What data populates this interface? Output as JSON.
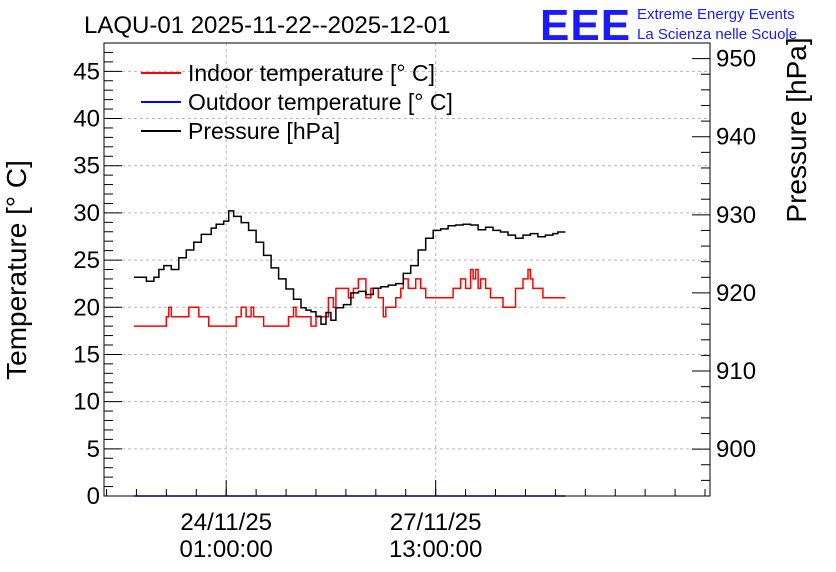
{
  "chart_data": {
    "type": "line",
    "title": "LAQU-01 2025-11-22--2025-12-01",
    "ylabel": "Temperature [° C]",
    "y2label": "Pressure [hPa]",
    "xlabel": "",
    "ylim": [
      0,
      48
    ],
    "y2lim": [
      894,
      952
    ],
    "yticks": [
      "0",
      "5",
      "10",
      "15",
      "20",
      "25",
      "30",
      "35",
      "40",
      "45"
    ],
    "y2ticks": [
      "900",
      "910",
      "920",
      "930",
      "940",
      "950"
    ],
    "xlim": [
      "2025-11-22 00:00",
      "2025-12-02 03:00"
    ],
    "xticks": [
      {
        "at": "2025-11-24 01:00",
        "date": "24/11/25",
        "time": "01:00:00"
      },
      {
        "at": "2025-11-27 13:00",
        "date": "27/11/25",
        "time": "13:00:00"
      }
    ],
    "grid": true,
    "legend": "top-left",
    "series": [
      {
        "name": "Indoor temperature [° C]",
        "color": "#ff0000",
        "axis": "left",
        "x": [
          "2025-11-22 12:00",
          "2025-11-22 23:00",
          "2025-11-23 01:00",
          "2025-11-23 02:00",
          "2025-11-23 03:00",
          "2025-11-23 09:00",
          "2025-11-23 10:00",
          "2025-11-23 12:00",
          "2025-11-23 14:00",
          "2025-11-23 17:00",
          "2025-11-23 18:00",
          "2025-11-24 04:00",
          "2025-11-24 05:00",
          "2025-11-24 07:00",
          "2025-11-24 09:00",
          "2025-11-24 11:00",
          "2025-11-24 12:00",
          "2025-11-24 15:00",
          "2025-11-24 16:00",
          "2025-11-24 21:00",
          "2025-11-25 02:00",
          "2025-11-25 04:00",
          "2025-11-25 05:00",
          "2025-11-25 09:00",
          "2025-11-25 11:00",
          "2025-11-25 13:00",
          "2025-11-25 17:00",
          "2025-11-25 18:00",
          "2025-11-25 20:00",
          "2025-11-25 21:00",
          "2025-11-26 02:00",
          "2025-11-26 04:00",
          "2025-11-26 06:00",
          "2025-11-26 09:00",
          "2025-11-26 11:00",
          "2025-11-26 14:00",
          "2025-11-26 16:00",
          "2025-11-26 17:00",
          "2025-11-26 21:00",
          "2025-11-26 23:00",
          "2025-11-27 00:00",
          "2025-11-27 02:00",
          "2025-11-27 05:00",
          "2025-11-27 07:00",
          "2025-11-27 09:00",
          "2025-11-27 15:00",
          "2025-11-27 20:00",
          "2025-11-27 23:00",
          "2025-11-28 01:00",
          "2025-11-28 03:00",
          "2025-11-28 04:00",
          "2025-11-28 05:00",
          "2025-11-28 06:00",
          "2025-11-28 07:00",
          "2025-11-28 09:00",
          "2025-11-28 11:00",
          "2025-11-28 13:00",
          "2025-11-28 16:00",
          "2025-11-28 19:00",
          "2025-11-28 21:00",
          "2025-11-29 00:00",
          "2025-11-29 02:00",
          "2025-11-29 03:00",
          "2025-11-29 04:00",
          "2025-11-29 06:00",
          "2025-11-29 08:00",
          "2025-11-29 11:00",
          "2025-11-29 14:00",
          "2025-11-29 17:00"
        ],
        "values": [
          18,
          18,
          19,
          20,
          19,
          19,
          20,
          20,
          19,
          19,
          18,
          18,
          19,
          20,
          19,
          20,
          19,
          19,
          18,
          18,
          19,
          20,
          19,
          19,
          18,
          19,
          19,
          21,
          20,
          22,
          21,
          22,
          23,
          21,
          22,
          21,
          19,
          20,
          21,
          22,
          23,
          22,
          23,
          22,
          21,
          21,
          22,
          23,
          22,
          24,
          23,
          24,
          22,
          23,
          22,
          21,
          21,
          20,
          20,
          22,
          23,
          24,
          23,
          22,
          22,
          21,
          21,
          21,
          21
        ]
      },
      {
        "name": "Outdoor temperature [° C]",
        "color": "#0000ff",
        "axis": "left",
        "x": [
          "2025-11-22 12:00",
          "2025-11-29 17:00"
        ],
        "values": [
          0,
          0
        ]
      },
      {
        "name": "Pressure [hPa]",
        "color": "#000000",
        "axis": "right",
        "x": [
          "2025-11-22 12:00",
          "2025-11-22 16:00",
          "2025-11-22 17:00",
          "2025-11-22 20:00",
          "2025-11-22 22:00",
          "2025-11-23 00:00",
          "2025-11-23 03:00",
          "2025-11-23 06:00",
          "2025-11-23 09:00",
          "2025-11-23 12:00",
          "2025-11-23 15:00",
          "2025-11-23 19:00",
          "2025-11-23 21:00",
          "2025-11-24 00:00",
          "2025-11-24 02:00",
          "2025-11-24 04:00",
          "2025-11-24 07:00",
          "2025-11-24 10:00",
          "2025-11-24 13:00",
          "2025-11-24 16:00",
          "2025-11-24 19:00",
          "2025-11-24 22:00",
          "2025-11-25 01:00",
          "2025-11-25 04:00",
          "2025-11-25 07:00",
          "2025-11-25 09:00",
          "2025-11-25 11:00",
          "2025-11-25 13:00",
          "2025-11-25 15:00",
          "2025-11-25 17:00",
          "2025-11-25 19:00",
          "2025-11-25 21:00",
          "2025-11-26 00:00",
          "2025-11-26 03:00",
          "2025-11-26 06:00",
          "2025-11-26 09:00",
          "2025-11-26 12:00",
          "2025-11-26 15:00",
          "2025-11-26 18:00",
          "2025-11-26 21:00",
          "2025-11-27 00:00",
          "2025-11-27 03:00",
          "2025-11-27 06:00",
          "2025-11-27 09:00",
          "2025-11-27 12:00",
          "2025-11-27 15:00",
          "2025-11-27 18:00",
          "2025-11-27 21:00",
          "2025-11-28 00:00",
          "2025-11-28 03:00",
          "2025-11-28 06:00",
          "2025-11-28 09:00",
          "2025-11-28 12:00",
          "2025-11-28 15:00",
          "2025-11-28 18:00",
          "2025-11-28 21:00",
          "2025-11-29 00:00",
          "2025-11-29 03:00",
          "2025-11-29 06:00",
          "2025-11-29 09:00",
          "2025-11-29 12:00",
          "2025-11-29 14:00",
          "2025-11-29 17:00"
        ],
        "values": [
          922,
          922,
          921.5,
          922,
          923,
          923.5,
          923,
          924.5,
          925.5,
          926.5,
          927.5,
          928.3,
          928.8,
          929.2,
          930.5,
          929.8,
          929,
          928,
          926.5,
          924.8,
          923.2,
          921.8,
          920.5,
          919.2,
          918.1,
          917.8,
          917.6,
          917,
          916,
          917.5,
          916.5,
          918.1,
          918.5,
          920,
          920.2,
          919.8,
          920.6,
          920.8,
          921,
          921.2,
          922.5,
          923.5,
          925.5,
          927,
          928,
          928.2,
          928.6,
          928.7,
          928.8,
          928.7,
          928.1,
          928.4,
          928,
          927.8,
          927.4,
          927,
          927.4,
          927.6,
          927.2,
          927.4,
          927.6,
          927.8,
          927.8
        ]
      }
    ]
  },
  "branding": {
    "logo": "EEE",
    "line1": "Extreme Energy Events",
    "line2": "La Scienza nelle Scuole"
  }
}
